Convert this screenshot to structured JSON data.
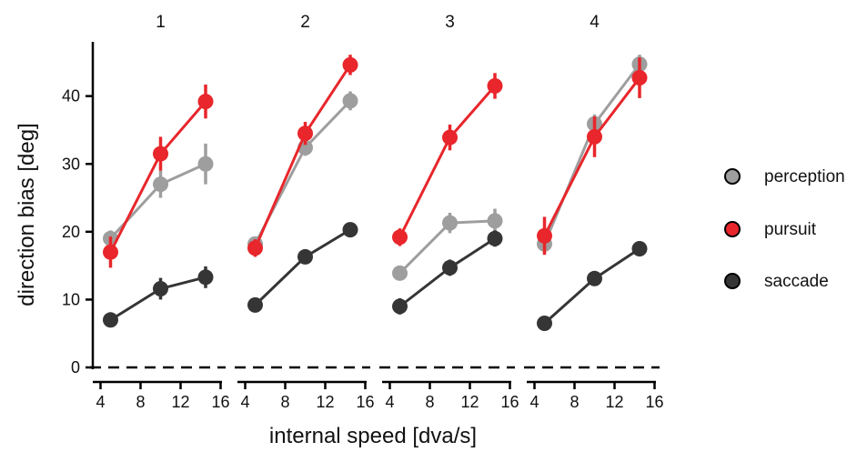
{
  "chart_data": {
    "type": "line",
    "xlabel": "internal speed [dva/s]",
    "ylabel": "direction bias [deg]",
    "ylim": [
      0,
      48
    ],
    "xlim": [
      3.5,
      16.5
    ],
    "yticks": [
      0,
      10,
      20,
      30,
      40
    ],
    "xticks": [
      4,
      8,
      12,
      16
    ],
    "reference_line": {
      "y": 0,
      "style": "dashed"
    },
    "legend": {
      "placement": "right"
    },
    "colors": {
      "perception": "#9e9e9e",
      "pursuit": "#e8262b",
      "saccade": "#353535"
    },
    "panels": [
      {
        "title": "1",
        "x": [
          5,
          10,
          14.5
        ],
        "series": [
          {
            "name": "perception",
            "values": [
              19,
              27,
              30
            ],
            "errors": [
              1.2,
              2.0,
              3.0
            ]
          },
          {
            "name": "pursuit",
            "values": [
              17,
              31.5,
              39.2
            ],
            "errors": [
              2.3,
              2.5,
              2.5
            ]
          },
          {
            "name": "saccade",
            "values": [
              7,
              11.6,
              13.3
            ],
            "errors": [
              1.0,
              1.6,
              1.6
            ]
          }
        ]
      },
      {
        "title": "2",
        "x": [
          5,
          10,
          14.5
        ],
        "series": [
          {
            "name": "perception",
            "values": [
              18.2,
              32.4,
              39.3
            ],
            "errors": [
              1.0,
              1.2,
              1.4
            ]
          },
          {
            "name": "pursuit",
            "values": [
              17.6,
              34.5,
              44.6
            ],
            "errors": [
              1.3,
              1.7,
              1.5
            ]
          },
          {
            "name": "saccade",
            "values": [
              9.2,
              16.3,
              20.3
            ],
            "errors": [
              0.7,
              0.8,
              0.8
            ]
          }
        ]
      },
      {
        "title": "3",
        "x": [
          5,
          10,
          14.5
        ],
        "series": [
          {
            "name": "perception",
            "values": [
              13.9,
              21.3,
              21.6
            ],
            "errors": [
              1.0,
              1.5,
              1.8
            ]
          },
          {
            "name": "pursuit",
            "values": [
              19.2,
              33.9,
              41.5
            ],
            "errors": [
              1.3,
              1.9,
              1.9
            ]
          },
          {
            "name": "saccade",
            "values": [
              9,
              14.7,
              19
            ],
            "errors": [
              1.2,
              1.2,
              1.2
            ]
          }
        ]
      },
      {
        "title": "4",
        "x": [
          5,
          10,
          14.5
        ],
        "series": [
          {
            "name": "perception",
            "values": [
              18.2,
              35.9,
              44.7
            ],
            "errors": [
              1.2,
              1.4,
              1.4
            ]
          },
          {
            "name": "pursuit",
            "values": [
              19.4,
              34,
              42.7
            ],
            "errors": [
              2.8,
              3.0,
              3.0
            ]
          },
          {
            "name": "saccade",
            "values": [
              6.5,
              13.1,
              17.5
            ],
            "errors": [
              0.5,
              0.9,
              1.1
            ]
          }
        ]
      }
    ]
  }
}
